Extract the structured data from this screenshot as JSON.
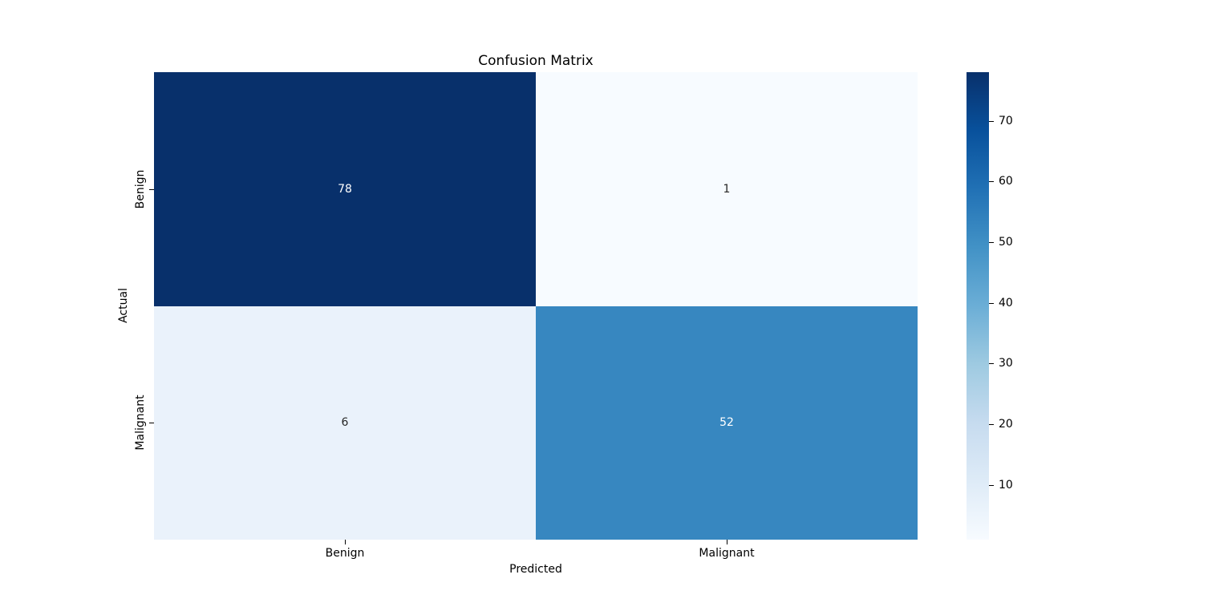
{
  "chart_data": {
    "type": "heatmap",
    "title": "Confusion Matrix",
    "xlabel": "Predicted",
    "ylabel": "Actual",
    "x_categories": [
      "Benign",
      "Malignant"
    ],
    "y_categories": [
      "Benign",
      "Malignant"
    ],
    "matrix": [
      [
        78,
        1
      ],
      [
        6,
        52
      ]
    ],
    "annotations": [
      [
        "78",
        "1"
      ],
      [
        "6",
        "52"
      ]
    ],
    "vmin": 1,
    "vmax": 78,
    "colormap": "Blues",
    "legend_position": "right-colorbar",
    "grid": false,
    "colorbar_ticks": [
      10,
      20,
      30,
      40,
      50,
      60,
      70
    ]
  },
  "colors": {
    "background": "#ffffff",
    "text": "#000000",
    "annotation_dark": "#262626",
    "annotation_light": "#ffffff",
    "cell_colors": [
      [
        "#08306b",
        "#f7fbff"
      ],
      [
        "#eaf2fb",
        "#3787c0"
      ]
    ],
    "cell_text_colors": [
      [
        "#ffffff",
        "#262626"
      ],
      [
        "#262626",
        "#ffffff"
      ]
    ],
    "colormap_stops": [
      [
        0.0,
        "#f7fbff"
      ],
      [
        0.125,
        "#deebf7"
      ],
      [
        0.25,
        "#c6dbef"
      ],
      [
        0.375,
        "#9ecae1"
      ],
      [
        0.5,
        "#6baed6"
      ],
      [
        0.625,
        "#4292c6"
      ],
      [
        0.75,
        "#2171b5"
      ],
      [
        0.875,
        "#08519c"
      ],
      [
        1.0,
        "#08306b"
      ]
    ]
  }
}
